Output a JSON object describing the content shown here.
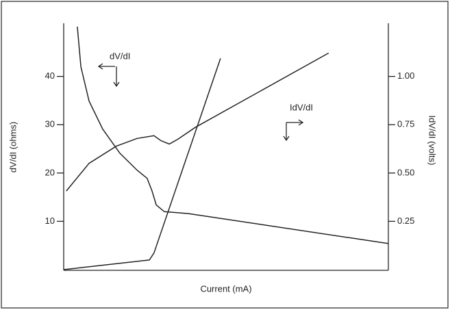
{
  "chart_data": {
    "type": "line",
    "xlabel": "Current (mA)",
    "ylabel": "dV/dI (ohms)",
    "y2label": "IdV/dI (volts)",
    "xlim": [
      0,
      100
    ],
    "ylim": [
      0,
      51
    ],
    "yticks": [
      10,
      20,
      30,
      40
    ],
    "y2lim": [
      0,
      1.275
    ],
    "y2ticks": [
      {
        "value": 0.25,
        "label": "0.25"
      },
      {
        "value": 0.5,
        "label": "0.50"
      },
      {
        "value": 0.75,
        "label": "0.75"
      },
      {
        "value": 1,
        "label": "1.00"
      }
    ],
    "series": [
      {
        "name": "dV/dI",
        "color": "#222222",
        "x": [
          4.2,
          5.3,
          7.8,
          12,
          17.3,
          22.6,
          25.7,
          27.2,
          28.5,
          31,
          38.4,
          100
        ],
        "values": [
          50.3,
          42,
          34.9,
          29.1,
          24.1,
          20.6,
          18.9,
          16.3,
          13.4,
          12,
          11.6,
          5.4
        ]
      },
      {
        "name": "IdV/dI",
        "color": "#222222",
        "axis": "y2",
        "x": [
          0.8,
          7.8,
          16.2,
          22.6,
          27.8,
          29.9,
          32.5,
          35.2,
          40.5,
          81.6
        ],
        "values": [
          0.407,
          0.55,
          0.639,
          0.679,
          0.693,
          0.668,
          0.65,
          0.675,
          0.736,
          1.121
        ]
      },
      {
        "color": "#222222",
        "axis": "y2",
        "x": [
          0,
          26.4,
          27.8,
          48.3
        ],
        "values": [
          0,
          0.05,
          0.086,
          1.093
        ]
      }
    ]
  }
}
